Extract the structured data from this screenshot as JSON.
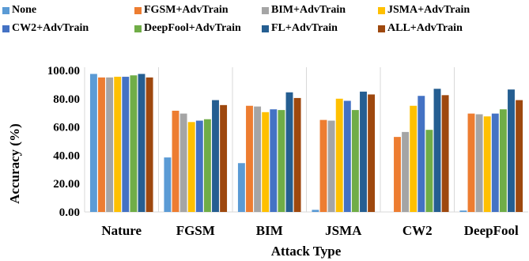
{
  "chart_data": {
    "type": "bar",
    "title": "",
    "xlabel": "Attack Type",
    "ylabel": "Accuracy (%)",
    "ylim": [
      0,
      100
    ],
    "yticks": [
      "0.00",
      "20.00",
      "40.00",
      "60.00",
      "80.00",
      "100.00"
    ],
    "ytick_values": [
      0,
      20,
      40,
      60,
      80,
      100
    ],
    "grid": false,
    "legend_position": "top",
    "categories": [
      "Nature",
      "FGSM",
      "BIM",
      "JSMA",
      "CW2",
      "DeepFool"
    ],
    "series": [
      {
        "name": "None",
        "color": "#5B9BD5",
        "values": [
          97.5,
          38.5,
          34.5,
          1.5,
          0,
          1.0
        ]
      },
      {
        "name": "FGSM+AdvTrain",
        "color": "#ED7D31",
        "values": [
          95.0,
          71.5,
          75.0,
          65.0,
          53.0,
          69.5
        ]
      },
      {
        "name": "BIM+AdvTrain",
        "color": "#A5A5A5",
        "values": [
          95.0,
          69.5,
          74.5,
          64.5,
          56.5,
          69.0
        ]
      },
      {
        "name": "JSMA+AdvTrain",
        "color": "#FFC000",
        "values": [
          95.5,
          63.5,
          70.5,
          80.0,
          75.0,
          67.5
        ]
      },
      {
        "name": "CW2+AdvTrain",
        "color": "#4472C4",
        "values": [
          95.5,
          64.5,
          72.5,
          78.5,
          82.0,
          69.5
        ]
      },
      {
        "name": "DeepFool+AdvTrain",
        "color": "#70AD47",
        "values": [
          96.5,
          65.5,
          72.0,
          72.0,
          58.0,
          72.5
        ]
      },
      {
        "name": "FL+AdvTrain",
        "color": "#255E91",
        "values": [
          97.5,
          79.0,
          84.5,
          85.0,
          87.0,
          86.5
        ]
      },
      {
        "name": "ALL+AdvTrain",
        "color": "#9E480E",
        "values": [
          95.0,
          75.5,
          80.5,
          83.0,
          82.5,
          79.0
        ]
      }
    ]
  }
}
